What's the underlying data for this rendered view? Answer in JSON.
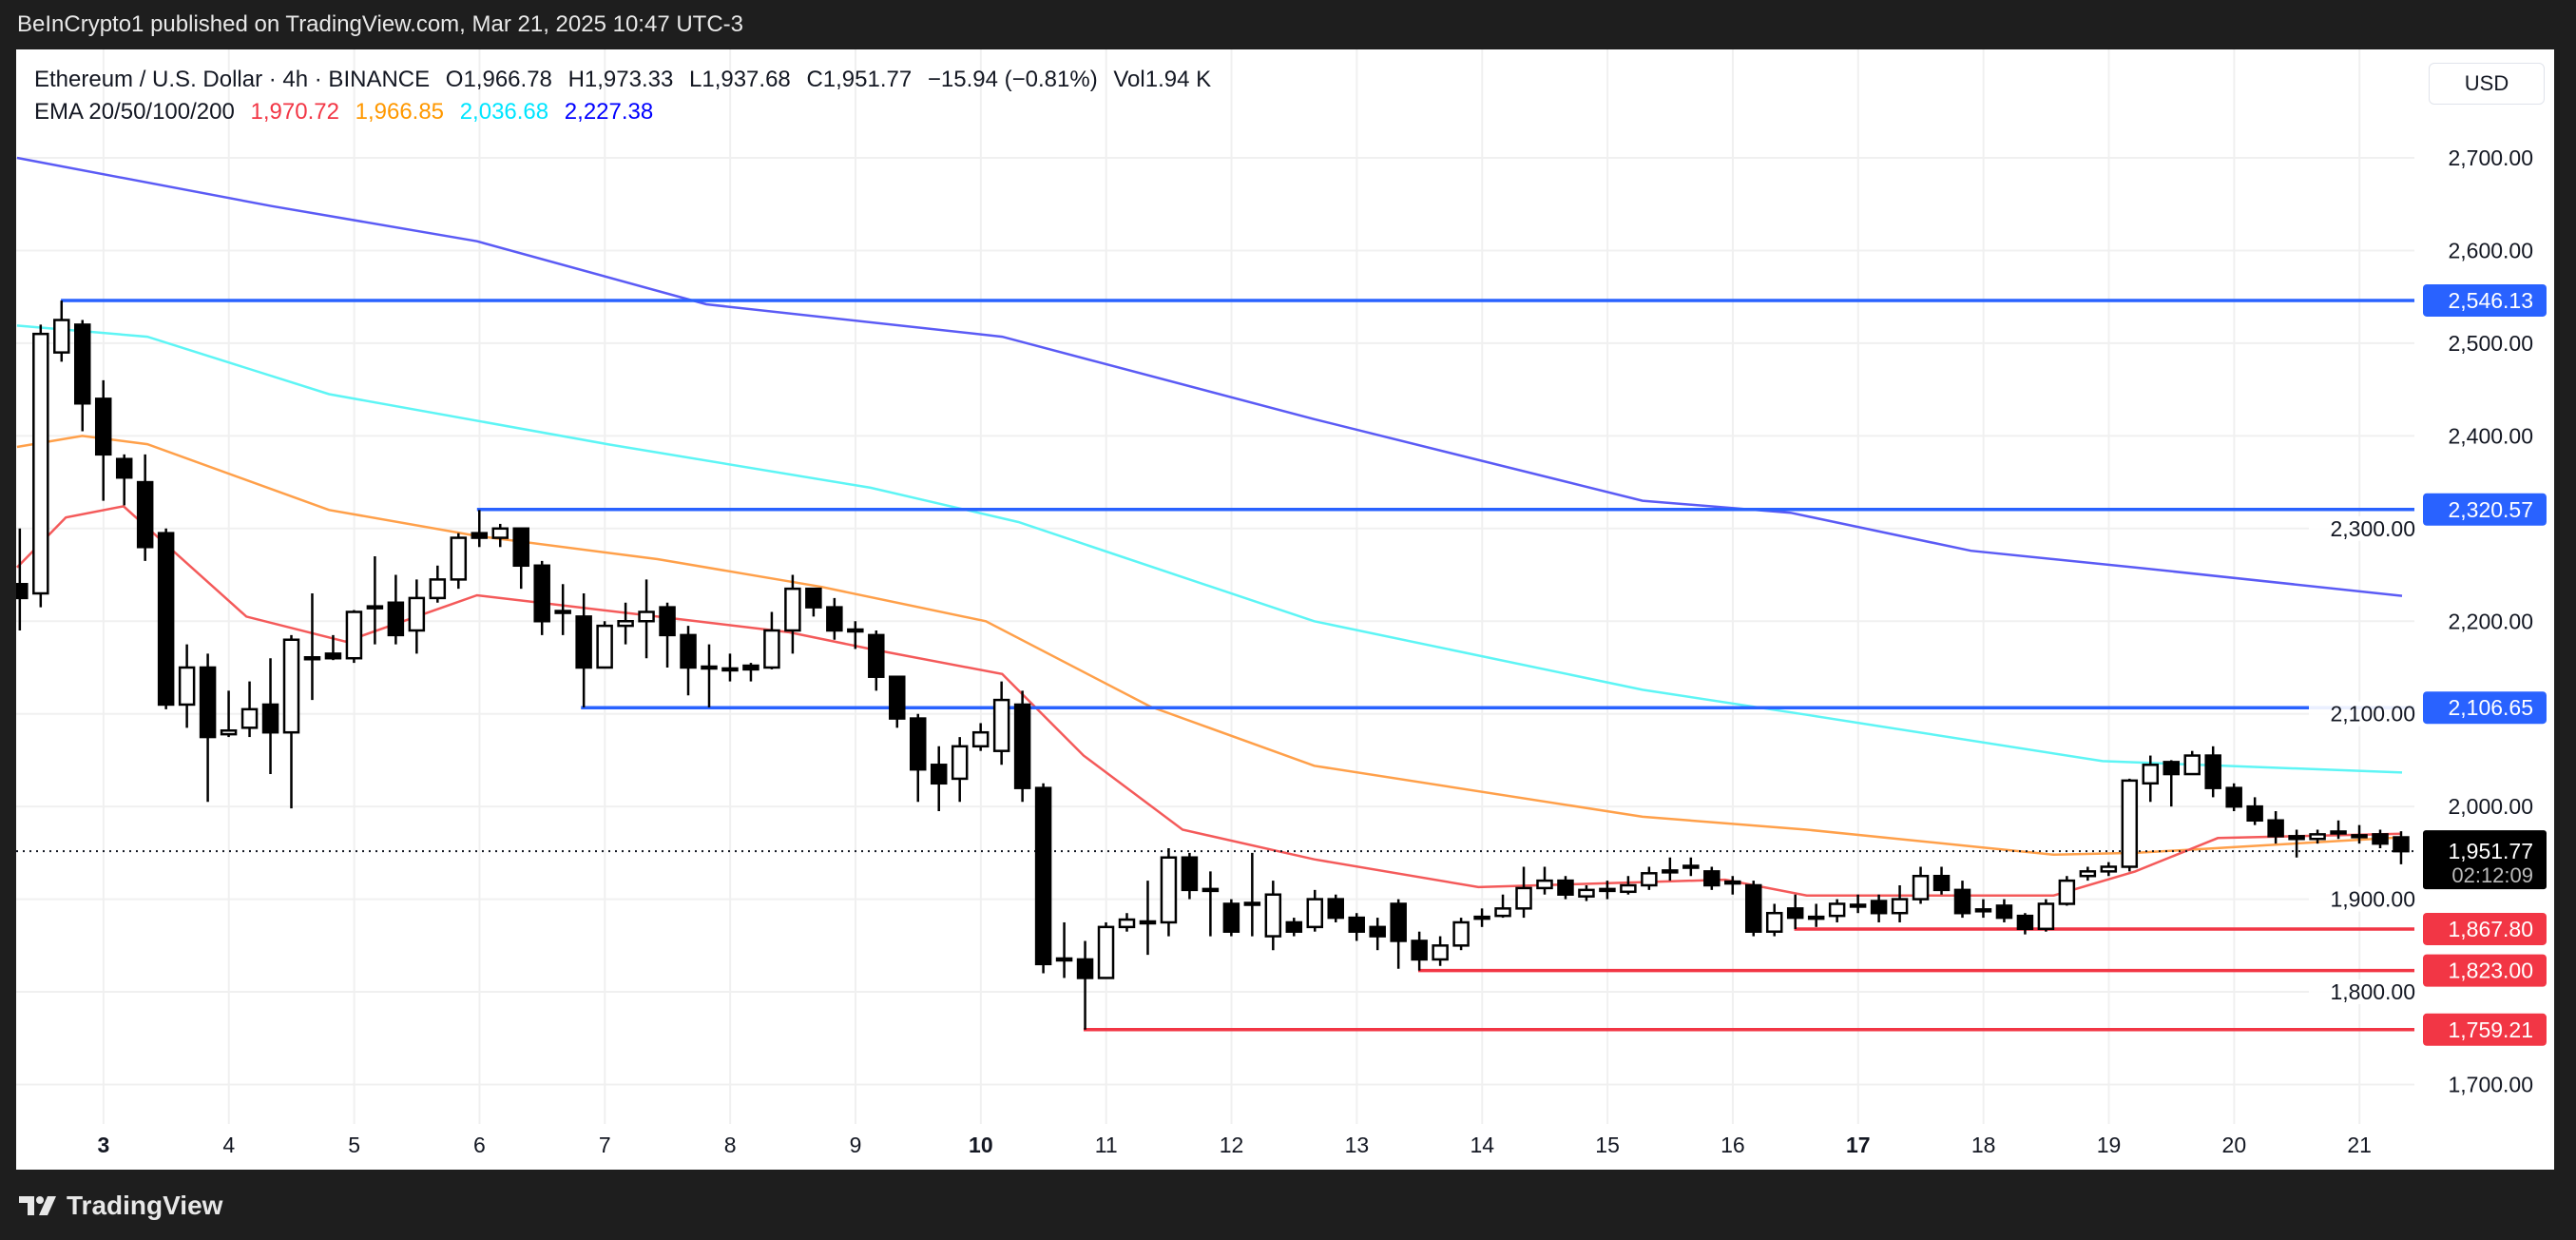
{
  "header": {
    "published": "BeInCrypto1 published on TradingView.com, Mar 21, 2025 10:47 UTC-3"
  },
  "legend": {
    "symbol": "Ethereum / U.S. Dollar · 4h · BINANCE",
    "open": "O1,966.78",
    "high": "H1,973.33",
    "low": "L1,937.68",
    "close": "C1,951.77",
    "change": "−15.94 (−0.81%)",
    "volume": "Vol1.94 K",
    "ema_label": "EMA 20/50/100/200",
    "ema_values": [
      {
        "text": "1,970.72",
        "color": "#f23645"
      },
      {
        "text": "1,966.85",
        "color": "#ff9800"
      },
      {
        "text": "2,036.68",
        "color": "#00e5ff"
      },
      {
        "text": "2,227.38",
        "color": "#2962ff"
      }
    ]
  },
  "currency": "USD",
  "footer": {
    "brand": "TradingView"
  },
  "chart_data": {
    "type": "candlestick",
    "title": "Ethereum / U.S. Dollar · 4h · BINANCE",
    "ylim": [
      1660,
      2760
    ],
    "grid": true,
    "x_ticks": [
      {
        "day": 3,
        "label": "3",
        "bold": true
      },
      {
        "day": 4,
        "label": "4"
      },
      {
        "day": 5,
        "label": "5"
      },
      {
        "day": 6,
        "label": "6"
      },
      {
        "day": 7,
        "label": "7"
      },
      {
        "day": 8,
        "label": "8"
      },
      {
        "day": 9,
        "label": "9"
      },
      {
        "day": 10,
        "label": "10",
        "bold": true
      },
      {
        "day": 11,
        "label": "11"
      },
      {
        "day": 12,
        "label": "12"
      },
      {
        "day": 13,
        "label": "13"
      },
      {
        "day": 14,
        "label": "14"
      },
      {
        "day": 15,
        "label": "15"
      },
      {
        "day": 16,
        "label": "16"
      },
      {
        "day": 17,
        "label": "17",
        "bold": true
      },
      {
        "day": 18,
        "label": "18"
      },
      {
        "day": 19,
        "label": "19"
      },
      {
        "day": 20,
        "label": "20"
      },
      {
        "day": 21,
        "label": "21"
      }
    ],
    "y_ticks": [
      {
        "value": 2700,
        "label": "2,700.00"
      },
      {
        "value": 2600,
        "label": "2,600.00"
      },
      {
        "value": 2500,
        "label": "2,500.00"
      },
      {
        "value": 2400,
        "label": "2,400.00"
      },
      {
        "value": 2300,
        "label": "2,300.00"
      },
      {
        "value": 2200,
        "label": "2,200.00"
      },
      {
        "value": 2100,
        "label": "2,100.00"
      },
      {
        "value": 2000,
        "label": "2,000.00"
      },
      {
        "value": 1900,
        "label": "1,900.00"
      },
      {
        "value": 1800,
        "label": "1,800.00"
      },
      {
        "value": 1700,
        "label": "1,700.00"
      }
    ],
    "candles_ohlc": [
      [
        2240,
        2300,
        2190,
        2225
      ],
      [
        2230,
        2520,
        2215,
        2510
      ],
      [
        2490,
        2546,
        2480,
        2525
      ],
      [
        2520,
        2525,
        2405,
        2435
      ],
      [
        2440,
        2460,
        2330,
        2380
      ],
      [
        2375,
        2380,
        2325,
        2355
      ],
      [
        2350,
        2380,
        2265,
        2280
      ],
      [
        2295,
        2300,
        2105,
        2110
      ],
      [
        2110,
        2175,
        2085,
        2150
      ],
      [
        2150,
        2165,
        2005,
        2075
      ],
      [
        2078,
        2125,
        2075,
        2082
      ],
      [
        2085,
        2135,
        2075,
        2105
      ],
      [
        2110,
        2160,
        2035,
        2080
      ],
      [
        2080,
        2185,
        1998,
        2180
      ],
      [
        2160,
        2230,
        2115,
        2161
      ],
      [
        2165,
        2185,
        2158,
        2160
      ],
      [
        2160,
        2212,
        2155,
        2210
      ],
      [
        2214,
        2270,
        2175,
        2216
      ],
      [
        2220,
        2250,
        2175,
        2185
      ],
      [
        2190,
        2245,
        2165,
        2225
      ],
      [
        2225,
        2260,
        2220,
        2245
      ],
      [
        2245,
        2295,
        2235,
        2290
      ],
      [
        2295,
        2320,
        2280,
        2290
      ],
      [
        2290,
        2305,
        2280,
        2300
      ],
      [
        2300,
        2300,
        2235,
        2260
      ],
      [
        2260,
        2265,
        2185,
        2200
      ],
      [
        2210,
        2240,
        2185,
        2211
      ],
      [
        2205,
        2230,
        2107,
        2150
      ],
      [
        2150,
        2200,
        2150,
        2195
      ],
      [
        2195,
        2220,
        2175,
        2200
      ],
      [
        2200,
        2245,
        2160,
        2210
      ],
      [
        2215,
        2220,
        2150,
        2185
      ],
      [
        2185,
        2195,
        2120,
        2150
      ],
      [
        2150,
        2175,
        2107,
        2151
      ],
      [
        2148,
        2165,
        2135,
        2149
      ],
      [
        2152,
        2155,
        2135,
        2148
      ],
      [
        2150,
        2210,
        2148,
        2190
      ],
      [
        2190,
        2250,
        2165,
        2235
      ],
      [
        2235,
        2236,
        2205,
        2215
      ],
      [
        2215,
        2225,
        2180,
        2190
      ],
      [
        2190,
        2200,
        2170,
        2191
      ],
      [
        2185,
        2190,
        2125,
        2140
      ],
      [
        2140,
        2141,
        2085,
        2095
      ],
      [
        2095,
        2100,
        2005,
        2040
      ],
      [
        2045,
        2065,
        1995,
        2025
      ],
      [
        2030,
        2075,
        2005,
        2065
      ],
      [
        2065,
        2090,
        2060,
        2080
      ],
      [
        2060,
        2135,
        2045,
        2115
      ],
      [
        2110,
        2125,
        2005,
        2020
      ],
      [
        2020,
        2025,
        1820,
        1830
      ],
      [
        1835,
        1875,
        1815,
        1836
      ],
      [
        1835,
        1855,
        1759.21,
        1815
      ],
      [
        1815,
        1875,
        1815,
        1870
      ],
      [
        1870,
        1885,
        1865,
        1878
      ],
      [
        1875,
        1920,
        1840,
        1876
      ],
      [
        1875,
        1955,
        1860,
        1945
      ],
      [
        1945,
        1950,
        1900,
        1910
      ],
      [
        1910,
        1930,
        1860,
        1911
      ],
      [
        1895,
        1900,
        1860,
        1865
      ],
      [
        1895,
        1950,
        1860,
        1896
      ],
      [
        1860,
        1920,
        1845,
        1905
      ],
      [
        1875,
        1880,
        1860,
        1865
      ],
      [
        1870,
        1910,
        1865,
        1900
      ],
      [
        1900,
        1905,
        1875,
        1880
      ],
      [
        1880,
        1885,
        1855,
        1865
      ],
      [
        1870,
        1880,
        1845,
        1860
      ],
      [
        1895,
        1900,
        1825,
        1855
      ],
      [
        1855,
        1865,
        1823,
        1835
      ],
      [
        1835,
        1860,
        1828,
        1850
      ],
      [
        1850,
        1880,
        1845,
        1875
      ],
      [
        1880,
        1890,
        1870,
        1881
      ],
      [
        1882,
        1905,
        1880,
        1890
      ],
      [
        1890,
        1935,
        1880,
        1912
      ],
      [
        1912,
        1935,
        1905,
        1920
      ],
      [
        1920,
        1925,
        1900,
        1905
      ],
      [
        1903,
        1915,
        1898,
        1910
      ],
      [
        1910,
        1920,
        1900,
        1911
      ],
      [
        1908,
        1925,
        1905,
        1915
      ],
      [
        1915,
        1935,
        1910,
        1928
      ],
      [
        1930,
        1945,
        1920,
        1931
      ],
      [
        1935,
        1945,
        1925,
        1936
      ],
      [
        1930,
        1935,
        1910,
        1915
      ],
      [
        1918,
        1925,
        1905,
        1919
      ],
      [
        1915,
        1920,
        1860,
        1865
      ],
      [
        1865,
        1895,
        1860,
        1885
      ],
      [
        1890,
        1905,
        1867.8,
        1880
      ],
      [
        1880,
        1895,
        1870,
        1881
      ],
      [
        1882,
        1900,
        1875,
        1895
      ],
      [
        1893,
        1905,
        1885,
        1894
      ],
      [
        1898,
        1905,
        1875,
        1885
      ],
      [
        1885,
        1915,
        1875,
        1900
      ],
      [
        1900,
        1935,
        1895,
        1925
      ],
      [
        1925,
        1935,
        1905,
        1910
      ],
      [
        1910,
        1920,
        1880,
        1885
      ],
      [
        1888,
        1900,
        1880,
        1889
      ],
      [
        1893,
        1900,
        1875,
        1880
      ],
      [
        1882,
        1885,
        1862,
        1868
      ],
      [
        1868,
        1900,
        1865,
        1895
      ],
      [
        1895,
        1925,
        1893,
        1920
      ],
      [
        1925,
        1935,
        1920,
        1930
      ],
      [
        1930,
        1940,
        1925,
        1935
      ],
      [
        1935,
        2030,
        1930,
        2028
      ],
      [
        2025,
        2055,
        2005,
        2045
      ],
      [
        2048,
        2050,
        2000,
        2035
      ],
      [
        2035,
        2060,
        2035,
        2055
      ],
      [
        2055,
        2065,
        2010,
        2020
      ],
      [
        2020,
        2025,
        1995,
        2000
      ],
      [
        2000,
        2010,
        1980,
        1985
      ],
      [
        1985,
        1995,
        1960,
        1968
      ],
      [
        1968,
        1975,
        1945,
        1965
      ],
      [
        1965,
        1975,
        1960,
        1970
      ],
      [
        1972,
        1985,
        1965,
        1973
      ],
      [
        1968,
        1980,
        1960,
        1969
      ],
      [
        1970,
        1975,
        1955,
        1960
      ],
      [
        1966.78,
        1973.33,
        1937.68,
        1951.77
      ]
    ],
    "ema_series": [
      {
        "name": "EMA 200",
        "color": "#5b5bf5",
        "points": [
          [
            2.31,
            2700
          ],
          [
            4.34,
            2648
          ],
          [
            5.98,
            2610
          ],
          [
            7.81,
            2542
          ],
          [
            10.17,
            2507
          ],
          [
            12.66,
            2418
          ],
          [
            15.28,
            2330
          ],
          [
            16.46,
            2317
          ],
          [
            17.9,
            2276
          ],
          [
            19.21,
            2258
          ],
          [
            21.34,
            2227.38
          ]
        ]
      },
      {
        "name": "EMA 100",
        "color": "#5ef5f5",
        "points": [
          [
            2.31,
            2519
          ],
          [
            3.35,
            2507
          ],
          [
            4.8,
            2445
          ],
          [
            7.02,
            2391
          ],
          [
            9.12,
            2344
          ],
          [
            10.3,
            2307
          ],
          [
            12.66,
            2200
          ],
          [
            15.28,
            2126
          ],
          [
            16.59,
            2099
          ],
          [
            18.95,
            2049
          ],
          [
            21.34,
            2036.68
          ]
        ]
      },
      {
        "name": "EMA 50",
        "color": "#ffa04a",
        "points": [
          [
            2.31,
            2388
          ],
          [
            2.83,
            2400
          ],
          [
            3.35,
            2391
          ],
          [
            4.8,
            2320
          ],
          [
            5.98,
            2292
          ],
          [
            7.42,
            2267
          ],
          [
            8.73,
            2237
          ],
          [
            10.04,
            2200
          ],
          [
            11.35,
            2108
          ],
          [
            12.66,
            2044
          ],
          [
            15.28,
            1989
          ],
          [
            16.59,
            1975
          ],
          [
            18.56,
            1948
          ],
          [
            19.21,
            1950
          ],
          [
            21.34,
            1966.85
          ]
        ]
      },
      {
        "name": "EMA 20",
        "color": "#f45a5a",
        "points": [
          [
            2.31,
            2258
          ],
          [
            2.7,
            2312
          ],
          [
            3.16,
            2324
          ],
          [
            3.48,
            2285
          ],
          [
            4.14,
            2205
          ],
          [
            4.93,
            2178
          ],
          [
            5.98,
            2228
          ],
          [
            7.42,
            2205
          ],
          [
            8.47,
            2188
          ],
          [
            9.12,
            2170
          ],
          [
            10.17,
            2143
          ],
          [
            10.82,
            2055
          ],
          [
            11.61,
            1975
          ],
          [
            12.66,
            1943
          ],
          [
            13.97,
            1913
          ],
          [
            15.94,
            1921
          ],
          [
            16.59,
            1904
          ],
          [
            18.56,
            1904
          ],
          [
            19.21,
            1930
          ],
          [
            19.87,
            1966
          ],
          [
            21.34,
            1970.72
          ]
        ]
      }
    ],
    "levels": [
      {
        "value": 2546.13,
        "label": "2,546.13",
        "from_day": 2.66,
        "color": "#2962ff"
      },
      {
        "value": 2320.57,
        "label": "2,320.57",
        "from_day": 5.98,
        "color": "#2962ff"
      },
      {
        "value": 2106.65,
        "label": "2,106.65",
        "from_day": 6.81,
        "color": "#2962ff"
      },
      {
        "value": 1867.8,
        "label": "1,867.80",
        "from_day": 16.49,
        "color": "#f23645"
      },
      {
        "value": 1823.0,
        "label": "1,823.00",
        "from_day": 13.49,
        "color": "#f23645"
      },
      {
        "value": 1759.21,
        "label": "1,759.21",
        "from_day": 10.82,
        "color": "#f23645"
      }
    ],
    "last_price": {
      "value": 1951.77,
      "label": "1,951.77",
      "countdown": "02:12:09"
    }
  }
}
